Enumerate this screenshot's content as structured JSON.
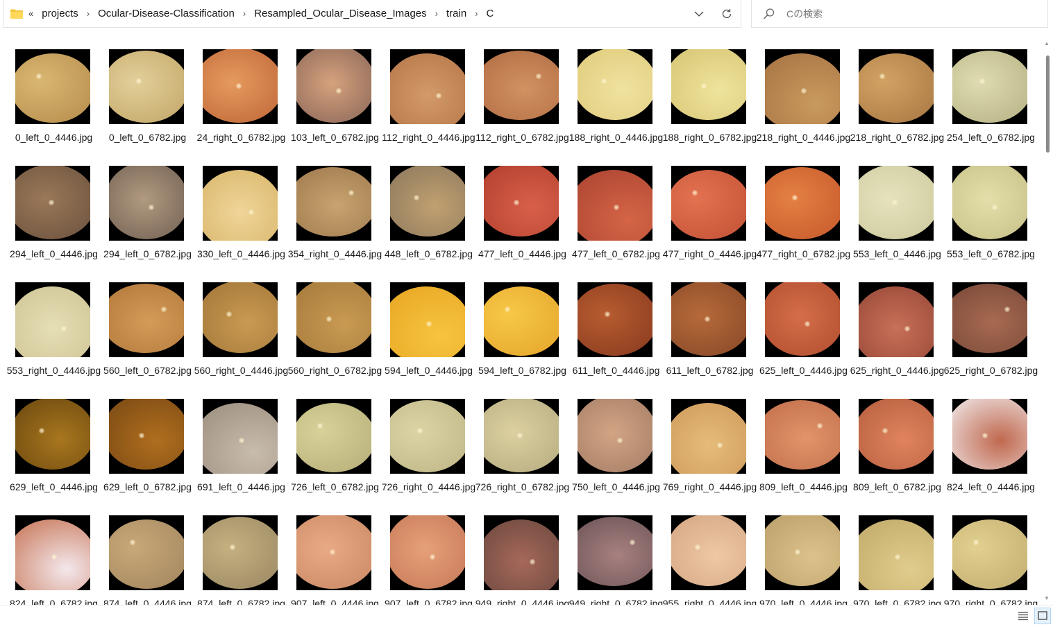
{
  "breadcrumb": {
    "overflow_label": "«",
    "items": [
      "projects",
      "Ocular-Disease-Classification",
      "Resampled_Ocular_Disease_Images",
      "train",
      "C"
    ],
    "separator": "›"
  },
  "search": {
    "placeholder": "Cの検索"
  },
  "icons": {
    "folder": "folder-icon",
    "dropdown": "chevron-down-icon",
    "refresh": "refresh-icon",
    "search": "search-icon",
    "details_view": "details-view-icon",
    "thumbnail_view": "large-icons-view-icon"
  },
  "files": [
    {
      "name": "0_left_0_4446.jpg"
    },
    {
      "name": "0_left_0_6782.jpg"
    },
    {
      "name": "24_right_0_6782.jpg"
    },
    {
      "name": "103_left_0_6782.jpg"
    },
    {
      "name": "112_right_0_4446.jpg"
    },
    {
      "name": "112_right_0_6782.jpg"
    },
    {
      "name": "188_right_0_4446.jpg"
    },
    {
      "name": "188_right_0_6782.jpg"
    },
    {
      "name": "218_right_0_4446.jpg"
    },
    {
      "name": "218_right_0_6782.jpg"
    },
    {
      "name": "254_left_0_6782.jpg"
    },
    {
      "name": "294_left_0_4446.jpg"
    },
    {
      "name": "294_left_0_6782.jpg"
    },
    {
      "name": "330_left_0_4446.jpg"
    },
    {
      "name": "354_right_0_4446.jpg"
    },
    {
      "name": "448_left_0_6782.jpg"
    },
    {
      "name": "477_left_0_4446.jpg"
    },
    {
      "name": "477_left_0_6782.jpg"
    },
    {
      "name": "477_right_0_4446.jpg"
    },
    {
      "name": "477_right_0_6782.jpg"
    },
    {
      "name": "553_left_0_4446.jpg"
    },
    {
      "name": "553_left_0_6782.jpg"
    },
    {
      "name": "553_right_0_4446.jpg"
    },
    {
      "name": "560_left_0_6782.jpg"
    },
    {
      "name": "560_right_0_4446.jpg"
    },
    {
      "name": "560_right_0_6782.jpg"
    },
    {
      "name": "594_left_0_4446.jpg"
    },
    {
      "name": "594_left_0_6782.jpg"
    },
    {
      "name": "611_left_0_4446.jpg"
    },
    {
      "name": "611_left_0_6782.jpg"
    },
    {
      "name": "625_left_0_4446.jpg"
    },
    {
      "name": "625_right_0_4446.jpg"
    },
    {
      "name": "625_right_0_6782.jpg"
    },
    {
      "name": "629_left_0_4446.jpg"
    },
    {
      "name": "629_left_0_6782.jpg"
    },
    {
      "name": "691_left_0_4446.jpg"
    },
    {
      "name": "726_left_0_6782.jpg"
    },
    {
      "name": "726_right_0_4446.jpg"
    },
    {
      "name": "726_right_0_6782.jpg"
    },
    {
      "name": "750_left_0_4446.jpg"
    },
    {
      "name": "769_right_0_4446.jpg"
    },
    {
      "name": "809_left_0_4446.jpg"
    },
    {
      "name": "809_left_0_6782.jpg"
    },
    {
      "name": "824_left_0_4446.jpg"
    },
    {
      "name": "824_left_0_6782.jpg"
    },
    {
      "name": "874_left_0_4446.jpg"
    },
    {
      "name": "874_left_0_6782.jpg"
    },
    {
      "name": "907_left_0_4446.jpg"
    },
    {
      "name": "907_left_0_6782.jpg"
    },
    {
      "name": "949_right_0_4446.jpg"
    },
    {
      "name": "949_right_0_6782.jpg"
    },
    {
      "name": "955_right_0_4446.jpg"
    },
    {
      "name": "970_left_0_4446.jpg"
    },
    {
      "name": "970_left_0_6782.jpg"
    },
    {
      "name": "970_right_0_6782.jpg"
    }
  ]
}
